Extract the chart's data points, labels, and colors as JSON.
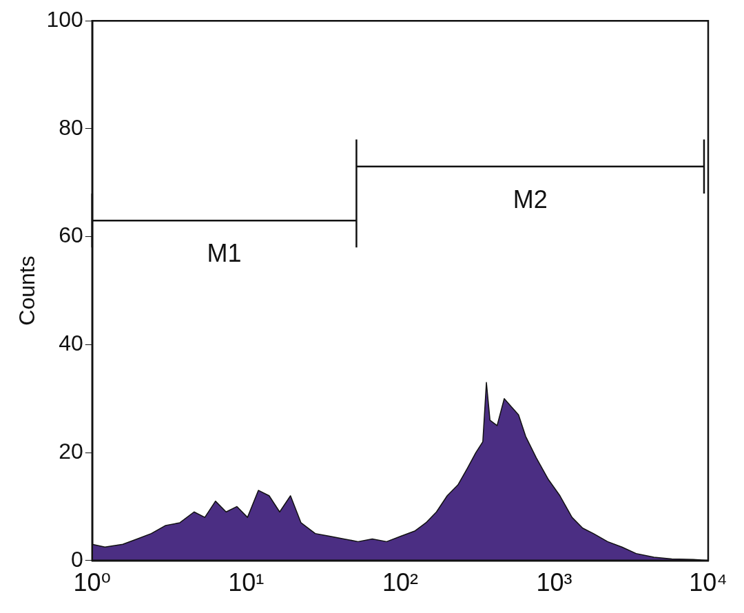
{
  "chart_data": {
    "type": "area",
    "ylabel": "Counts",
    "log": "x",
    "grid": false,
    "legend": false,
    "xlim": [
      1,
      10000
    ],
    "xticks": [
      {
        "value": 1,
        "label": "10⁰"
      },
      {
        "value": 10,
        "label": "10¹"
      },
      {
        "value": 100,
        "label": "10²"
      },
      {
        "value": 1000,
        "label": "10³"
      },
      {
        "value": 10000,
        "label": "10⁴"
      }
    ],
    "ylim": [
      0,
      100
    ],
    "yticks": [
      0,
      20,
      40,
      60,
      80,
      100
    ],
    "series": [
      {
        "type": "line",
        "name": "M1",
        "color": "#111111",
        "x": [
          1,
          52
        ],
        "values": [
          63,
          63
        ],
        "errors": [
          5,
          5
        ]
      },
      {
        "type": "line",
        "name": "M2",
        "color": "#111111",
        "x": [
          52,
          9400
        ],
        "values": [
          73,
          73
        ],
        "errors": [
          5,
          5
        ]
      },
      {
        "color": "#4b2e83",
        "x": [
          1,
          1.21,
          1.58,
          1.96,
          2.42,
          3.0,
          3.71,
          4.59,
          5.39,
          6.32,
          7.41,
          8.71,
          10.2,
          12.0,
          14.1,
          16.5,
          19.4,
          22.7,
          28.1,
          34.8,
          43.1,
          53.3,
          65.9,
          81.7,
          101,
          125,
          147,
          172,
          202,
          237,
          272,
          310,
          344,
          363,
          383,
          426,
          474,
          527,
          587,
          653,
          766,
          918,
          1090,
          1306,
          1531,
          1798,
          2223,
          2754,
          3404,
          4446,
          5803,
          8000,
          10000
        ],
        "values": [
          3,
          2.5,
          3,
          4,
          5,
          6.5,
          7,
          9,
          8,
          11,
          9,
          10,
          8,
          13,
          12,
          9,
          12,
          7,
          5,
          4.5,
          4,
          3.5,
          4,
          3.5,
          4.5,
          5.5,
          7,
          9,
          12,
          14,
          17,
          20,
          22,
          33,
          26,
          25,
          30,
          28.5,
          27,
          23,
          19,
          15,
          12,
          8,
          6,
          5,
          3.5,
          2.5,
          1.3,
          0.6,
          0.3,
          0.2,
          0
        ]
      }
    ]
  }
}
